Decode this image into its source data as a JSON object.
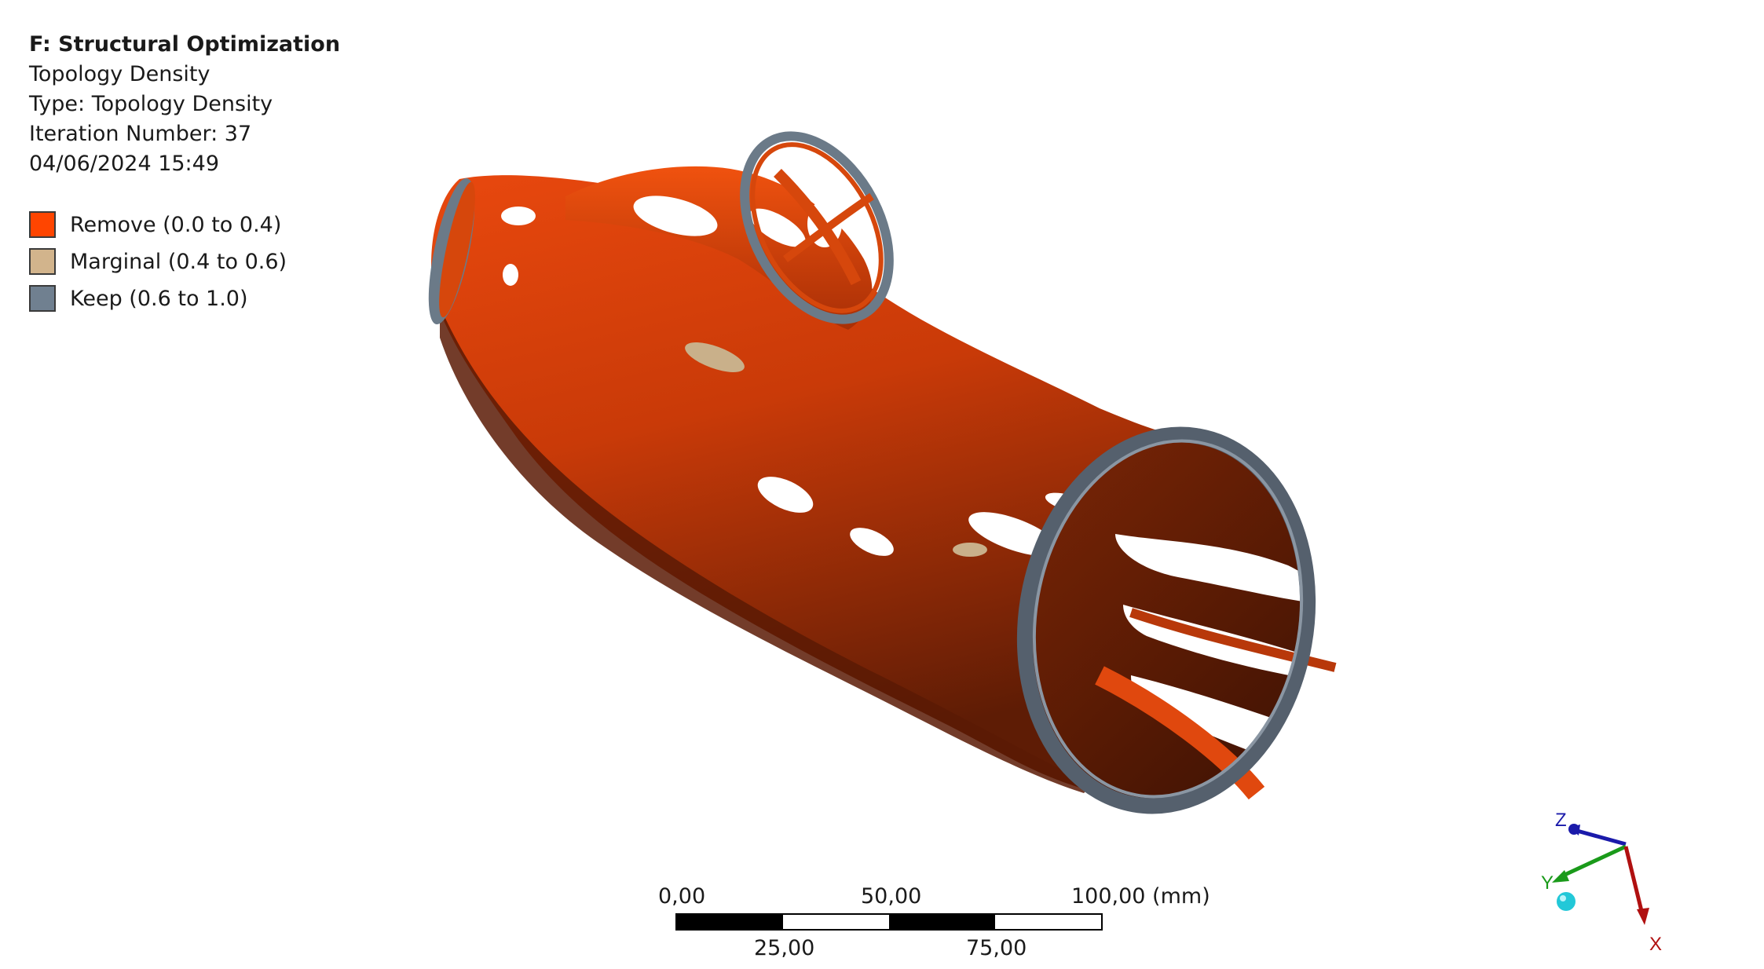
{
  "info": {
    "system_title": "F: Structural Optimization",
    "result_name": "Topology Density",
    "type_line": "Type: Topology Density",
    "iteration_line": "Iteration Number: 37",
    "timestamp": "04/06/2024 15:49"
  },
  "legend": {
    "items": [
      {
        "label": "Remove (0.0 to 0.4)",
        "color": "#ff4500"
      },
      {
        "label": "Marginal (0.4 to 0.6)",
        "color": "#d2b48c"
      },
      {
        "label": "Keep (0.6 to 1.0)",
        "color": "#708090"
      }
    ]
  },
  "scale_bar": {
    "top_labels": [
      "0,00",
      "50,00",
      "100,00 (mm)"
    ],
    "bottom_labels": [
      "25,00",
      "75,00"
    ]
  },
  "triad": {
    "z_label": "Z",
    "y_label": "Y",
    "x_label": "X",
    "z_color": "#1a1aaa",
    "y_color": "#1a9a1a",
    "x_color": "#b01010",
    "origin_color": "#22c8d8"
  },
  "model": {
    "remove_color": "#e0400a",
    "remove_dark": "#5a1a05",
    "keep_color": "#6b7a88",
    "marginal_color": "#c9b08a"
  }
}
